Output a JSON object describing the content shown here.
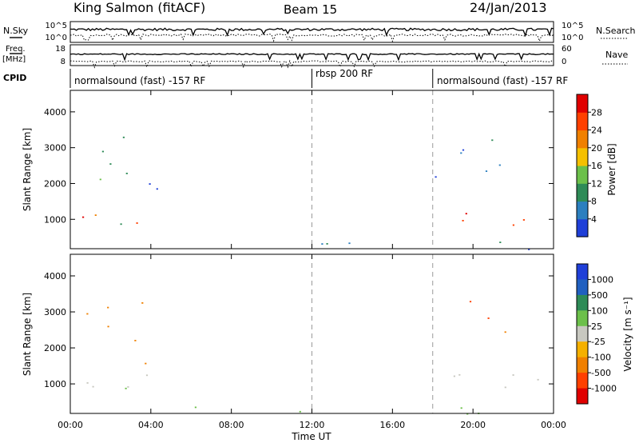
{
  "header": {
    "station": "King Salmon (fitACF)",
    "beam": "Beam 15",
    "date": "24/Jan/2013"
  },
  "top_panels": {
    "nsky_label": "N.Sky",
    "nsearch_label": "N.Search",
    "nsky_ticks": [
      "10^5",
      "10^0"
    ],
    "nsearch_ticks": [
      "10^5",
      "10^0"
    ],
    "freq_label": "Freq.",
    "freq_unit": "[MHz]",
    "freq_ticks": [
      "18",
      "8"
    ],
    "nave_label": "Nave",
    "nave_ticks": [
      "60",
      "0"
    ],
    "cpid_label": "CPID"
  },
  "cpid_segments": [
    {
      "start_hour": 0,
      "label": "normalsound (fast) -157 RF"
    },
    {
      "start_hour": 12,
      "label": "rbsp 200 RF"
    },
    {
      "start_hour": 18,
      "label": "normalsound (fast) -157 RF"
    }
  ],
  "colors": {
    "power_scale": [
      "#1f3fd8",
      "#2b7fbf",
      "#2e8b57",
      "#6cc04a",
      "#f5c000",
      "#f08000",
      "#ff4000",
      "#e00000"
    ],
    "velocity_scale": [
      "#e00000",
      "#ff4000",
      "#f08000",
      "#f5b000",
      "#c8c8c0",
      "#6cc04a",
      "#2e8b57",
      "#2060c0",
      "#1f3fd8"
    ],
    "ground_scatter": "#c8c8c0"
  },
  "chart_data": [
    {
      "type": "heatmap",
      "title": "",
      "xlabel": "Time UT",
      "ylabel": "Slant Range [km]",
      "x_ticks": [
        "00:00",
        "04:00",
        "08:00",
        "12:00",
        "16:00",
        "20:00",
        "00:00"
      ],
      "y_ticks": [
        "1000",
        "2000",
        "3000",
        "4000"
      ],
      "xlim": [
        0,
        24
      ],
      "ylim": [
        180,
        4600
      ],
      "colorbar": {
        "label": "Power [dB]",
        "ticks": [
          "4",
          "8",
          "12",
          "16",
          "20",
          "24",
          "28"
        ],
        "range": [
          0,
          30
        ]
      },
      "regions": [
        {
          "t": [
            0.3,
            4.6
          ],
          "r": [
            850,
            1350
          ],
          "value": 22
        },
        {
          "t": [
            0.3,
            3.0
          ],
          "r": [
            1000,
            1250
          ],
          "value": 26
        },
        {
          "t": [
            0.3,
            1.6
          ],
          "r": [
            2100,
            2500
          ],
          "value": 10
        },
        {
          "t": [
            1.5,
            4.3
          ],
          "r": [
            1700,
            3500
          ],
          "value": 6
        },
        {
          "t": [
            2.2,
            4.5
          ],
          "r": [
            450,
            1000
          ],
          "value": 6
        },
        {
          "t": [
            4.6,
            23.5
          ],
          "r": [
            180,
            400
          ],
          "value": 6
        },
        {
          "t": [
            18.4,
            24.0
          ],
          "r": [
            600,
            1300
          ],
          "value": 22
        },
        {
          "t": [
            19.1,
            22.0
          ],
          "r": [
            2000,
            3600
          ],
          "value": 10
        },
        {
          "t": [
            18.0,
            19.2
          ],
          "r": [
            1300,
            2300
          ],
          "value": 5
        }
      ]
    },
    {
      "type": "heatmap",
      "title": "",
      "xlabel": "Time UT",
      "ylabel": "Slant Range [km]",
      "x_ticks": [
        "00:00",
        "04:00",
        "08:00",
        "12:00",
        "16:00",
        "20:00",
        "00:00"
      ],
      "y_ticks": [
        "1000",
        "2000",
        "3000",
        "4000"
      ],
      "xlim": [
        0,
        24
      ],
      "ylim": [
        180,
        4600
      ],
      "colorbar": {
        "label": "Velocity [m s⁻¹]",
        "ticks": [
          "1000",
          "500",
          "100",
          "25",
          "-25",
          "-100",
          "-500",
          "-1000"
        ],
        "range": [
          -1000,
          1000
        ]
      },
      "regions": [
        {
          "t": [
            0.3,
            4.5
          ],
          "r": [
            850,
            1650
          ],
          "value": 0
        },
        {
          "t": [
            0.3,
            3.6
          ],
          "r": [
            2100,
            3500
          ],
          "value": -300
        },
        {
          "t": [
            3.2,
            4.6
          ],
          "r": [
            1000,
            1800
          ],
          "value": -250
        },
        {
          "t": [
            2.5,
            4.4
          ],
          "r": [
            500,
            950
          ],
          "value": 60
        },
        {
          "t": [
            4.8,
            23.5
          ],
          "r": [
            180,
            400
          ],
          "value": 30
        },
        {
          "t": [
            18.4,
            24.0
          ],
          "r": [
            700,
            1500
          ],
          "value": 0
        },
        {
          "t": [
            19.0,
            21.2
          ],
          "r": [
            2700,
            3500
          ],
          "value": -400
        },
        {
          "t": [
            20.5,
            22.6
          ],
          "r": [
            2300,
            2900
          ],
          "value": -150
        }
      ]
    }
  ]
}
